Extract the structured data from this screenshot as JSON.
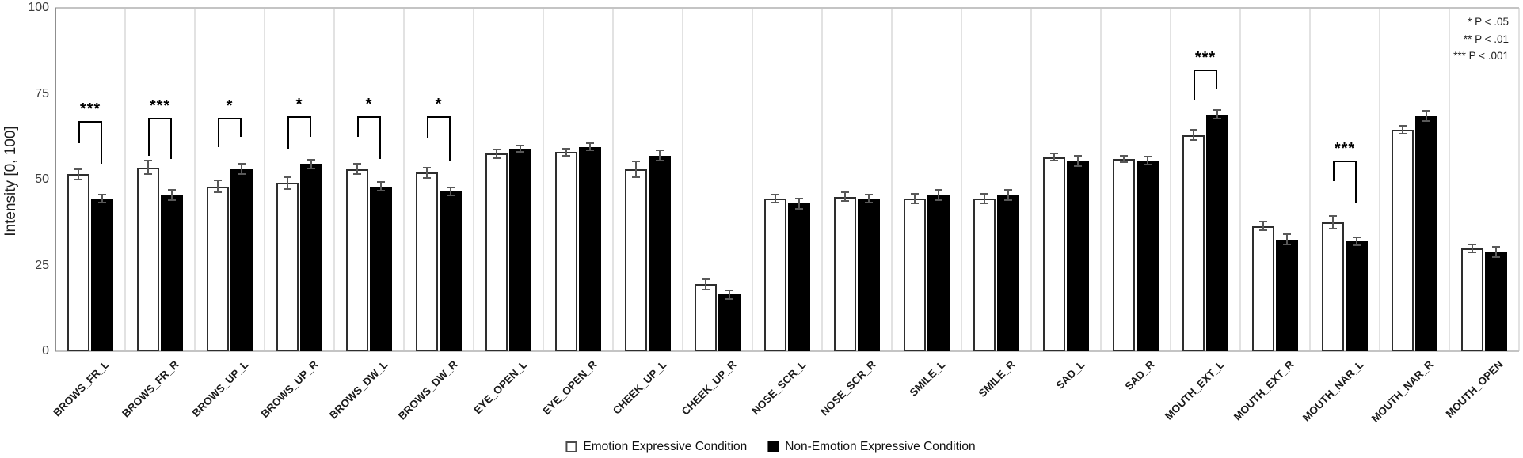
{
  "chart_data": {
    "type": "bar",
    "title": "",
    "ylabel": "Intensity [0, 100]",
    "xlabel": "",
    "ylim": [
      0,
      100
    ],
    "yticks": [
      0,
      25,
      50,
      75,
      100
    ],
    "grid": "vertical category separators only, gray top and baseline borders",
    "legend_position": "bottom-center",
    "categories": [
      "BROWS_FR_L",
      "BROWS_FR_R",
      "BROWS_UP_L",
      "BROWS_UP_R",
      "BROWS_DW_L",
      "BROWS_DW_R",
      "EYE_OPEN_L",
      "EYE_OPEN_R",
      "CHEEK_UP_L",
      "CHEEK_UP_R",
      "NOSE_SCR_L",
      "NOSE_SCR_R",
      "SMILE_L",
      "SMILE_R",
      "SAD_L",
      "SAD_R",
      "MOUTH_EXT_L",
      "MOUTH_EXT_R",
      "MOUTH_NAR_L",
      "MOUTH_NAR_R",
      "MOUTH_OPEN"
    ],
    "series": [
      {
        "name": "Emotion Expressive Condition",
        "fill": "#ffffff",
        "border": "#2e2e2e",
        "values": [
          51.5,
          53.5,
          48,
          49,
          53,
          52,
          57.5,
          58,
          53,
          19.5,
          44.5,
          45,
          44.5,
          44.5,
          56.5,
          56,
          63,
          36.5,
          37.5,
          64.5,
          30
        ],
        "errors": [
          1.5,
          2,
          1.8,
          1.8,
          1.5,
          1.5,
          1.3,
          1,
          2.3,
          1.5,
          1.2,
          1.2,
          1.3,
          1.3,
          1,
          1,
          1.5,
          1.3,
          1.8,
          1.2,
          1.2
        ]
      },
      {
        "name": "Non-Emotion Expressive Condition",
        "fill": "#000000",
        "border": "#000000",
        "values": [
          44.5,
          45.5,
          53,
          54.5,
          48,
          46.5,
          59,
          59.5,
          57,
          16.5,
          43,
          44.5,
          45.5,
          45.5,
          55.5,
          55.5,
          69,
          32.5,
          32,
          68.5,
          29
        ],
        "errors": [
          1.2,
          1.5,
          1.5,
          1.3,
          1.2,
          1.2,
          1,
          1,
          1.5,
          1.2,
          1.5,
          1.2,
          1.5,
          1.5,
          1.5,
          1.2,
          1.3,
          1.5,
          1.2,
          1.5,
          1.5
        ]
      }
    ],
    "significance": [
      {
        "category": "BROWS_FR_L",
        "stars": "***",
        "bracket_top": 67,
        "left_leg_end": 60.5,
        "right_leg_end": 54.5
      },
      {
        "category": "BROWS_FR_R",
        "stars": "***",
        "bracket_top": 68,
        "left_leg_end": 57,
        "right_leg_end": 56
      },
      {
        "category": "BROWS_UP_L",
        "stars": "*",
        "bracket_top": 68,
        "left_leg_end": 59.5,
        "right_leg_end": 62.5
      },
      {
        "category": "BROWS_UP_R",
        "stars": "*",
        "bracket_top": 68.5,
        "left_leg_end": 59,
        "right_leg_end": 62.5
      },
      {
        "category": "BROWS_DW_L",
        "stars": "*",
        "bracket_top": 68.5,
        "left_leg_end": 62.5,
        "right_leg_end": 56
      },
      {
        "category": "BROWS_DW_R",
        "stars": "*",
        "bracket_top": 68.5,
        "left_leg_end": 62,
        "right_leg_end": 55.5
      },
      {
        "category": "MOUTH_EXT_L",
        "stars": "***",
        "bracket_top": 82,
        "left_leg_end": 73,
        "right_leg_end": 76.5
      },
      {
        "category": "MOUTH_NAR_L",
        "stars": "***",
        "bracket_top": 55.5,
        "left_leg_end": 49.5,
        "right_leg_end": 43
      }
    ],
    "sig_note": [
      "* P < .05",
      "** P < .01",
      "*** P < .001"
    ],
    "error_bar_color": "#595959"
  }
}
